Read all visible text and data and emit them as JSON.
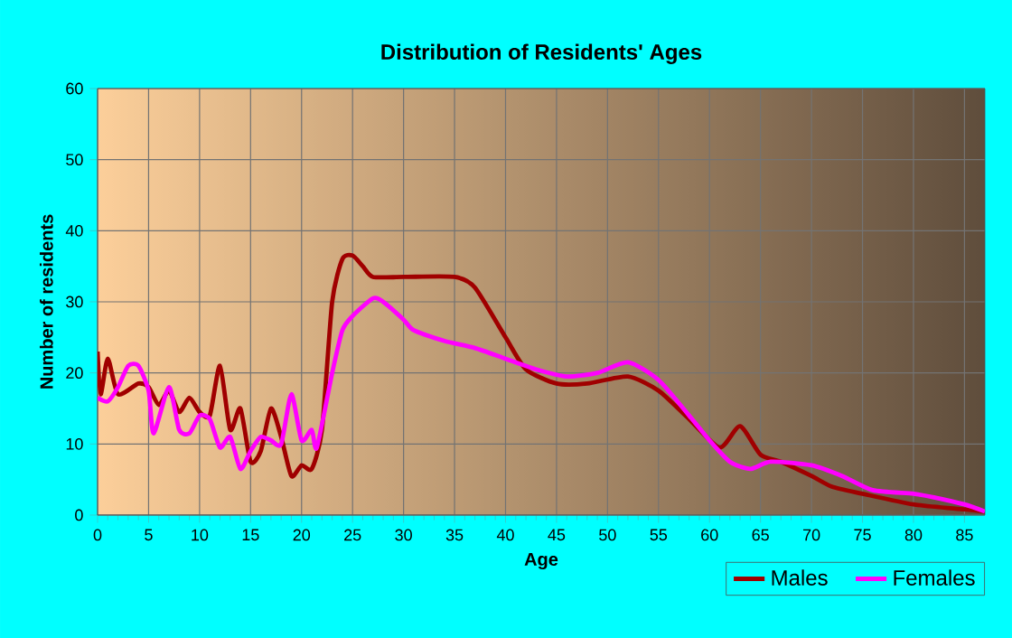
{
  "chart_data": {
    "type": "line",
    "title": "Distribution of Residents' Ages",
    "xlabel": "Age",
    "ylabel": "Number of residents",
    "xlim": [
      0,
      87
    ],
    "xticks": [
      0,
      5,
      10,
      15,
      20,
      25,
      30,
      35,
      40,
      45,
      50,
      55,
      60,
      65,
      70,
      75,
      80,
      85
    ],
    "ylim": [
      0,
      60
    ],
    "yticks": [
      0,
      10,
      20,
      30,
      40,
      50,
      60
    ],
    "grid": true,
    "legend": "bottom right",
    "marker": "none",
    "line_style": "solid",
    "series": [
      {
        "name": "Males",
        "color": "#a00000",
        "x": [
          0,
          0.3,
          1,
          2,
          4,
          5,
          6,
          7,
          8,
          9,
          10,
          11,
          12,
          13,
          14,
          15,
          16,
          17,
          18,
          19,
          20,
          21,
          22,
          23,
          24,
          25,
          26,
          27,
          30,
          35,
          37,
          40,
          42,
          45,
          48,
          52,
          55,
          58,
          61,
          63,
          65,
          67,
          70,
          72,
          75,
          80,
          85,
          87
        ],
        "values": [
          23,
          17,
          22,
          17,
          18.5,
          18,
          15.5,
          17.5,
          14.5,
          16.5,
          14.5,
          14,
          21,
          12,
          15,
          7.5,
          9,
          15,
          11,
          5.5,
          7,
          6.5,
          12,
          30,
          36,
          36.5,
          35,
          33.5,
          33.5,
          33.5,
          32,
          25,
          20.5,
          18.5,
          18.5,
          19.5,
          17.5,
          13.5,
          9.5,
          12.5,
          8.5,
          7.5,
          5.5,
          4,
          3,
          1.5,
          0.8,
          0.5
        ]
      },
      {
        "name": "Females",
        "color": "#ff00ff",
        "x": [
          0,
          1,
          2,
          3,
          4,
          5,
          5.5,
          7,
          8,
          9,
          10,
          11,
          12,
          13,
          14,
          15,
          16,
          17,
          18,
          19,
          20,
          21,
          21.5,
          23,
          24,
          25,
          27,
          28,
          30,
          31,
          34,
          37,
          40,
          43,
          46,
          49,
          52,
          55,
          58,
          60,
          62,
          64,
          66,
          70,
          73,
          76,
          80,
          82,
          85,
          87
        ],
        "values": [
          16.5,
          16,
          18,
          21,
          21,
          17.5,
          11.5,
          18,
          12,
          11.5,
          14,
          13.5,
          9.5,
          11,
          6.5,
          9,
          11,
          10.5,
          10,
          17,
          10.5,
          12,
          9.5,
          20,
          26,
          28,
          30.5,
          30,
          27.5,
          26,
          24.5,
          23.5,
          22,
          20.5,
          19.5,
          20,
          21.5,
          19,
          14,
          10.5,
          7.5,
          6.5,
          7.5,
          7,
          5.5,
          3.5,
          3,
          2.5,
          1.5,
          0.5
        ]
      }
    ]
  }
}
